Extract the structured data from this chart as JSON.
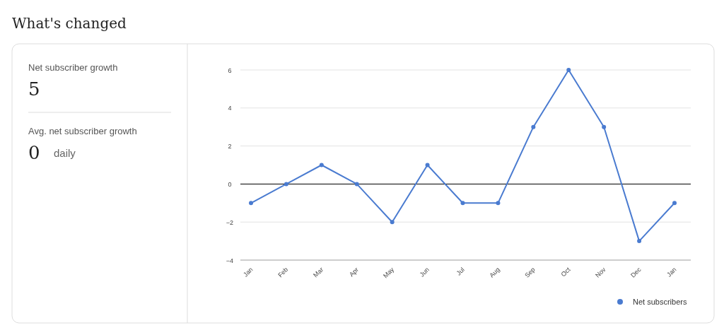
{
  "chart_data": [
    {
      "type": "other",
      "title": "What's changed",
      "annotations": [
        "Net subscriber growth",
        "5",
        "Avg. net subscriber growth",
        "0",
        "daily"
      ]
    },
    {
      "type": "line",
      "categories": [
        "Jan",
        "Feb",
        "Mar",
        "Apr",
        "May",
        "Jun",
        "Jul",
        "Aug",
        "Sep",
        "Oct",
        "Nov",
        "Dec",
        "Jan"
      ],
      "series": [
        {
          "name": "Net subscribers",
          "color": "#4a7bd0",
          "values": [
            -1,
            0,
            1,
            0,
            -2,
            1,
            -1,
            -1,
            3,
            6,
            3,
            -3,
            -1
          ]
        }
      ],
      "ylim": [
        -4,
        6
      ],
      "yticks": [
        -4,
        -2,
        0,
        2,
        4,
        6
      ],
      "grid": "y",
      "legend": "bottom right",
      "marker": "circle",
      "line_style": "solid",
      "ref_lines": [
        {
          "axis": "y",
          "value": 0,
          "color": "#000000"
        }
      ]
    }
  ]
}
